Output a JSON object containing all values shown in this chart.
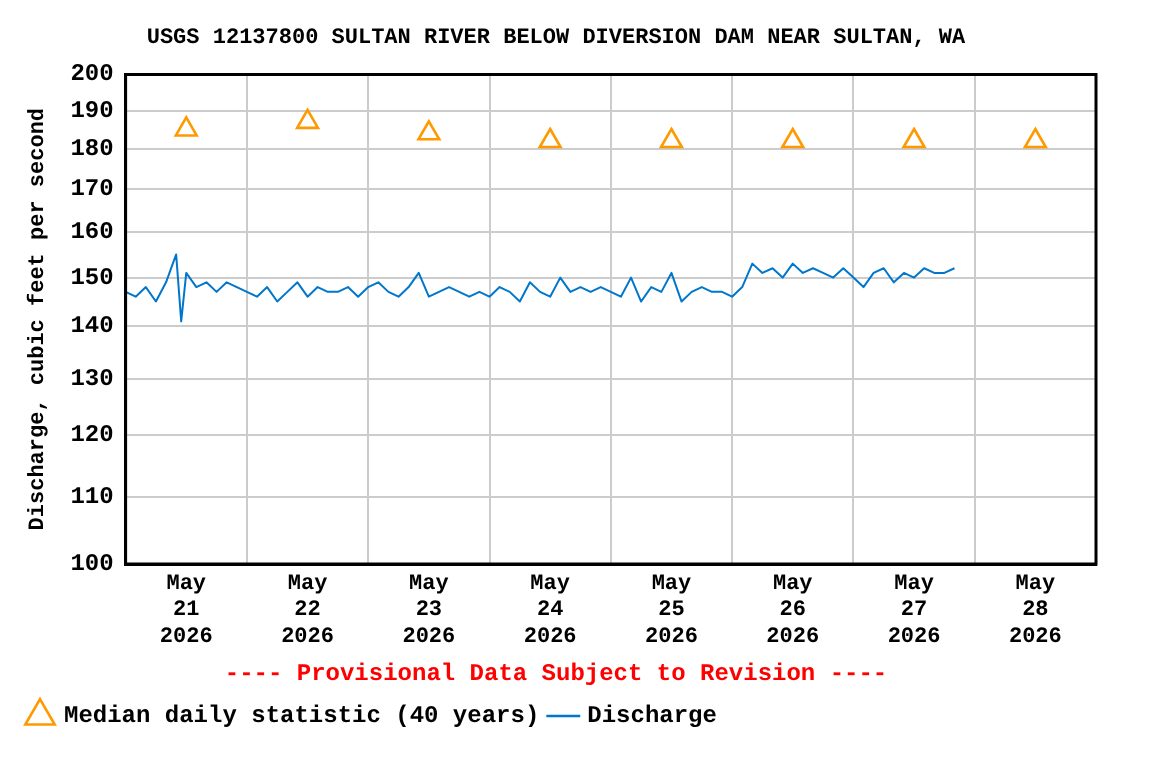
{
  "chart_data": {
    "type": "line",
    "title": "USGS 12137800 SULTAN RIVER BELOW DIVERSION DAM NEAR SULTAN, WA",
    "ylabel": "Discharge, cubic feet per second",
    "annotations": [
      "---- Provisional Data Subject to Revision ----"
    ],
    "log": true,
    "grid": true,
    "legend": "bottom",
    "xlim": [
      "2026-05-21T00:00",
      "2026-05-29T00:00"
    ],
    "ylim": [
      100,
      200
    ],
    "yticks": [
      100,
      110,
      120,
      130,
      140,
      150,
      160,
      170,
      180,
      190,
      200
    ],
    "xticks": [
      {
        "value": "2026-05-21T00:00",
        "label": null
      },
      {
        "value": "2026-05-21T12:00",
        "label": "May\n21\n2026"
      },
      {
        "value": "2026-05-22T00:00",
        "label": null
      },
      {
        "value": "2026-05-22T12:00",
        "label": "May\n22\n2026"
      },
      {
        "value": "2026-05-23T00:00",
        "label": null
      },
      {
        "value": "2026-05-23T12:00",
        "label": "May\n23\n2026"
      },
      {
        "value": "2026-05-24T00:00",
        "label": null
      },
      {
        "value": "2026-05-24T12:00",
        "label": "May\n24\n2026"
      },
      {
        "value": "2026-05-25T00:00",
        "label": null
      },
      {
        "value": "2026-05-25T12:00",
        "label": "May\n25\n2026"
      },
      {
        "value": "2026-05-26T00:00",
        "label": null
      },
      {
        "value": "2026-05-26T12:00",
        "label": "May\n26\n2026"
      },
      {
        "value": "2026-05-27T00:00",
        "label": null
      },
      {
        "value": "2026-05-27T12:00",
        "label": "May\n27\n2026"
      },
      {
        "value": "2026-05-28T00:00",
        "label": null
      },
      {
        "value": "2026-05-28T12:00",
        "label": "May\n28\n2026"
      },
      {
        "value": "2026-05-29T00:00",
        "label": null
      }
    ],
    "series": [
      {
        "name": "Median daily statistic (40 years)",
        "type": "scatter",
        "marker": "triangle",
        "color": "#ff9900",
        "x": [
          "2026-05-21T12:00",
          "2026-05-22T12:00",
          "2026-05-23T12:00",
          "2026-05-24T12:00",
          "2026-05-25T12:00",
          "2026-05-26T12:00",
          "2026-05-27T12:00",
          "2026-05-28T12:00"
        ],
        "values": [
          185,
          187,
          184,
          182,
          182,
          182,
          182,
          182
        ]
      },
      {
        "name": "Discharge",
        "type": "line",
        "marker": "none",
        "color": "#0077cc",
        "x": [
          "2026-05-21T00:00",
          "2026-05-21T02:00",
          "2026-05-21T04:00",
          "2026-05-21T06:00",
          "2026-05-21T08:00",
          "2026-05-21T10:00",
          "2026-05-21T11:00",
          "2026-05-21T12:00",
          "2026-05-21T14:00",
          "2026-05-21T16:00",
          "2026-05-21T18:00",
          "2026-05-21T20:00",
          "2026-05-21T22:00",
          "2026-05-22T00:00",
          "2026-05-22T02:00",
          "2026-05-22T04:00",
          "2026-05-22T06:00",
          "2026-05-22T08:00",
          "2026-05-22T10:00",
          "2026-05-22T12:00",
          "2026-05-22T14:00",
          "2026-05-22T16:00",
          "2026-05-22T18:00",
          "2026-05-22T20:00",
          "2026-05-22T22:00",
          "2026-05-23T00:00",
          "2026-05-23T02:00",
          "2026-05-23T04:00",
          "2026-05-23T06:00",
          "2026-05-23T08:00",
          "2026-05-23T10:00",
          "2026-05-23T12:00",
          "2026-05-23T14:00",
          "2026-05-23T16:00",
          "2026-05-23T18:00",
          "2026-05-23T20:00",
          "2026-05-23T22:00",
          "2026-05-24T00:00",
          "2026-05-24T02:00",
          "2026-05-24T04:00",
          "2026-05-24T06:00",
          "2026-05-24T08:00",
          "2026-05-24T10:00",
          "2026-05-24T12:00",
          "2026-05-24T14:00",
          "2026-05-24T16:00",
          "2026-05-24T18:00",
          "2026-05-24T20:00",
          "2026-05-24T22:00",
          "2026-05-25T00:00",
          "2026-05-25T02:00",
          "2026-05-25T04:00",
          "2026-05-25T06:00",
          "2026-05-25T08:00",
          "2026-05-25T10:00",
          "2026-05-25T12:00",
          "2026-05-25T14:00",
          "2026-05-25T16:00",
          "2026-05-25T18:00",
          "2026-05-25T20:00",
          "2026-05-25T22:00",
          "2026-05-26T00:00",
          "2026-05-26T02:00",
          "2026-05-26T04:00",
          "2026-05-26T06:00",
          "2026-05-26T08:00",
          "2026-05-26T10:00",
          "2026-05-26T12:00",
          "2026-05-26T14:00",
          "2026-05-26T16:00",
          "2026-05-26T18:00",
          "2026-05-26T20:00",
          "2026-05-26T22:00",
          "2026-05-27T00:00",
          "2026-05-27T02:00",
          "2026-05-27T04:00",
          "2026-05-27T06:00",
          "2026-05-27T08:00",
          "2026-05-27T10:00",
          "2026-05-27T12:00",
          "2026-05-27T14:00",
          "2026-05-27T16:00",
          "2026-05-27T18:00",
          "2026-05-27T20:00"
        ],
        "values": [
          147,
          146,
          148,
          145,
          149,
          155,
          141,
          151,
          148,
          149,
          147,
          149,
          148,
          147,
          146,
          148,
          145,
          147,
          149,
          146,
          148,
          147,
          147,
          148,
          146,
          148,
          149,
          147,
          146,
          148,
          151,
          146,
          147,
          148,
          147,
          146,
          147,
          146,
          148,
          147,
          145,
          149,
          147,
          146,
          150,
          147,
          148,
          147,
          148,
          147,
          146,
          150,
          145,
          148,
          147,
          151,
          145,
          147,
          148,
          147,
          147,
          146,
          148,
          153,
          151,
          152,
          150,
          153,
          151,
          152,
          151,
          150,
          152,
          150,
          148,
          151,
          152,
          149,
          151,
          150,
          152,
          151,
          151,
          152
        ]
      }
    ]
  }
}
